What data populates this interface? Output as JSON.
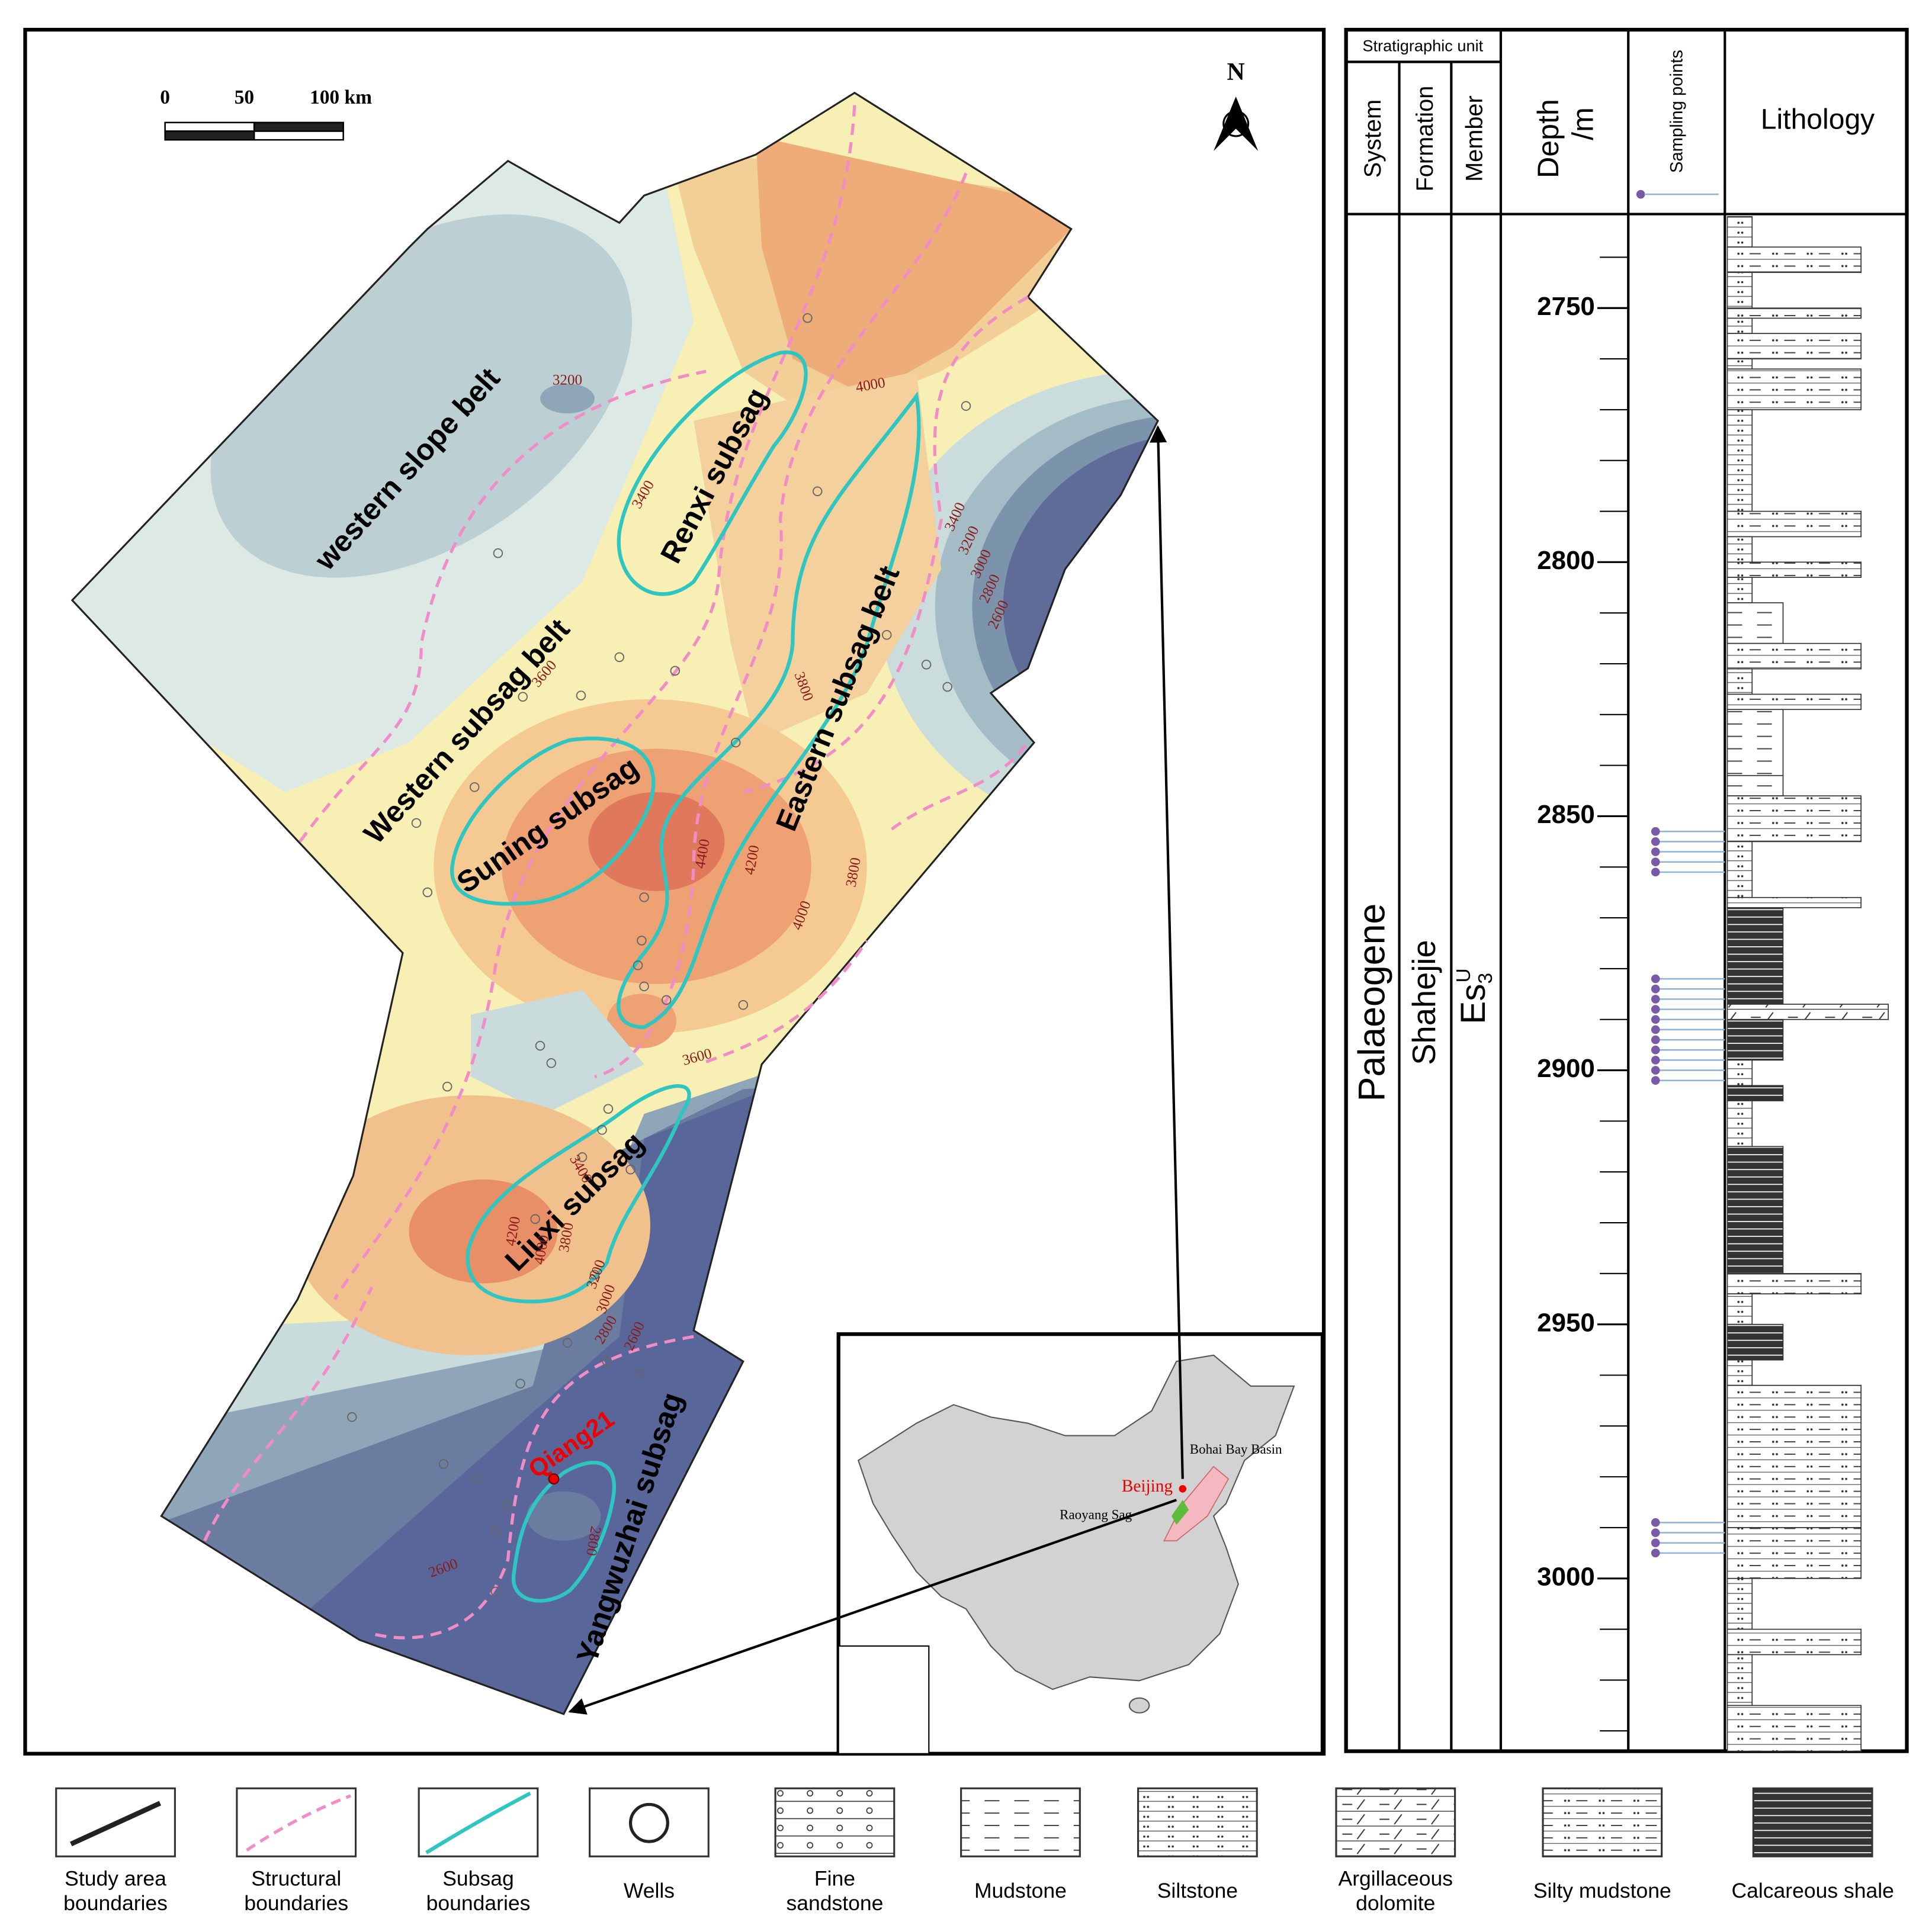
{
  "map": {
    "scale_labels": [
      "0",
      "50",
      "100 km"
    ],
    "north": "N",
    "regions": [
      "western slope belt",
      "Renxi subsag",
      "Western subsag belt",
      "Eastern subsag belt",
      "Suning subsag",
      "Liuxi subsag",
      "Yangwuzhai subsag"
    ],
    "well": "Qiang21",
    "contours": [
      3200,
      4000,
      3400,
      3400,
      3200,
      3000,
      2800,
      2600,
      3600,
      3800,
      4400,
      4200,
      3800,
      4000,
      3600,
      3400,
      4200,
      4000,
      3800,
      3200,
      3000,
      2800,
      2600,
      2800,
      2600
    ],
    "inset": {
      "basin": "Bohai Bay Basin",
      "city": "Beijing",
      "sag": "Raoyang Sag"
    }
  },
  "column": {
    "header": "Stratigraphic unit",
    "headings": {
      "system": "System",
      "formation": "Formation",
      "member": "Member",
      "depth": [
        "Depth",
        "/m"
      ],
      "sampling": "Sampling points",
      "lithology": "Lithology"
    },
    "system": "Palaeogene",
    "formation": "Shahejie",
    "member": {
      "base": "Es",
      "sub": "3",
      "sup": "U"
    },
    "depth_lim": [
      2732,
      3034
    ],
    "major_ticks": [
      2750,
      2800,
      2850,
      2900,
      2950,
      3000
    ],
    "minor_ticks": [
      2740,
      2760,
      2770,
      2780,
      2790,
      2810,
      2820,
      2830,
      2840,
      2860,
      2870,
      2880,
      2890,
      2910,
      2920,
      2930,
      2940,
      2960,
      2970,
      2980,
      2990,
      3010,
      3020,
      3030
    ],
    "samples": [
      2853,
      2855,
      2857,
      2859,
      2861,
      2882,
      2884,
      2886,
      2888,
      2890,
      2892,
      2894,
      2896,
      2898,
      2900,
      2902,
      2989,
      2991,
      2993,
      2995
    ],
    "beds": [
      [
        2732,
        2738,
        6
      ],
      [
        2738,
        2743,
        8
      ],
      [
        2743,
        2750,
        6
      ],
      [
        2750,
        2752,
        8
      ],
      [
        2752,
        2755,
        6
      ],
      [
        2755,
        2760,
        8
      ],
      [
        2760,
        2762,
        6
      ],
      [
        2762,
        2770,
        8
      ],
      [
        2770,
        2790,
        6
      ],
      [
        2790,
        2795,
        8
      ],
      [
        2795,
        2800,
        6
      ],
      [
        2800,
        2803,
        8
      ],
      [
        2803,
        2808,
        6
      ],
      [
        2808,
        2816,
        5
      ],
      [
        2816,
        2821,
        8
      ],
      [
        2821,
        2826,
        6
      ],
      [
        2826,
        2829,
        8
      ],
      [
        2829,
        2842,
        5
      ],
      [
        2842,
        2846,
        5
      ],
      [
        2846,
        2855,
        8
      ],
      [
        2855,
        2866,
        6
      ],
      [
        2866,
        2868,
        8
      ],
      [
        2868,
        2887,
        9
      ],
      [
        2887,
        2890,
        7
      ],
      [
        2890,
        2898,
        9
      ],
      [
        2898,
        2903,
        6
      ],
      [
        2903,
        2906,
        9
      ],
      [
        2906,
        2915,
        6
      ],
      [
        2915,
        2940,
        9
      ],
      [
        2940,
        2944,
        8
      ],
      [
        2944,
        2950,
        6
      ],
      [
        2950,
        2957,
        9
      ],
      [
        2957,
        2962,
        6
      ],
      [
        2962,
        2990,
        8
      ],
      [
        2990,
        3000,
        8
      ],
      [
        3000,
        3010,
        6
      ],
      [
        3010,
        3015,
        8
      ],
      [
        3015,
        3025,
        6
      ],
      [
        3025,
        3034,
        8
      ]
    ]
  },
  "legend": [
    [
      "Study area",
      "boundaries"
    ],
    [
      "Structural",
      "boundaries"
    ],
    [
      "Subsag",
      "boundaries"
    ],
    [
      "Wells"
    ],
    [
      "Fine",
      "sandstone"
    ],
    [
      "Mudstone"
    ],
    [
      "Siltstone"
    ],
    [
      "Argillaceous",
      "dolomite"
    ],
    [
      "Silty mudstone"
    ],
    [
      "Calcareous shale"
    ]
  ]
}
